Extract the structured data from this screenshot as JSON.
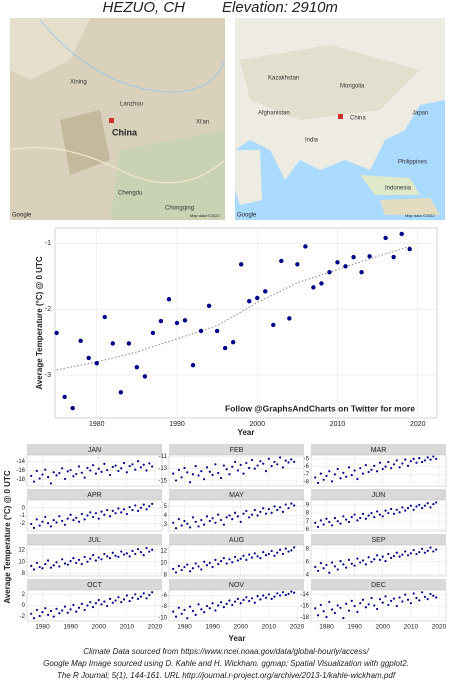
{
  "header": {
    "location": "HEZUO, CH",
    "elevation": "Elevation: 2910m"
  },
  "maps": {
    "left": {
      "labels": [
        "Xining",
        "Lanzhou",
        "China",
        "Chengdu",
        "Chongqing",
        "Xi'an",
        "Google",
        "Map data ©2022"
      ]
    },
    "right": {
      "labels": [
        "Mongolia",
        "China",
        "India",
        "Afghanistan",
        "Kazakhstan",
        "Japan",
        "Indonesia",
        "Philippines",
        "Google",
        "Map data ©2022"
      ]
    }
  },
  "chart_data": [
    {
      "type": "scatter",
      "xlabel": "Year",
      "ylabel": "Average Temperature (°C) @ 0 UTC",
      "annotation": "Follow @GraphsAndCharts on Twitter for more",
      "color": "#00008b",
      "grid": true,
      "xlim": [
        1974.8,
        2022.4
      ],
      "ylim": [
        -3.65,
        -0.77
      ],
      "xticks": [
        1980,
        1990,
        2000,
        2010,
        2020
      ],
      "yticks": [
        -3,
        -2,
        -1
      ],
      "x": [
        1975,
        1976,
        1977,
        1978,
        1979,
        1980,
        1981,
        1982,
        1983,
        1984,
        1985,
        1986,
        1987,
        1988,
        1989,
        1990,
        1991,
        1992,
        1993,
        1994,
        1995,
        1996,
        1997,
        1998,
        1999,
        2000,
        2001,
        2002,
        2003,
        2004,
        2005,
        2006,
        2007,
        2008,
        2009,
        2010,
        2011,
        2012,
        2013,
        2014,
        2016,
        2017,
        2018,
        2019
      ],
      "values": [
        -2.36,
        -3.33,
        -3.5,
        -2.48,
        -2.74,
        -2.82,
        -2.12,
        -2.52,
        -3.26,
        -2.52,
        -2.88,
        -3.02,
        -2.36,
        -2.18,
        -1.85,
        -2.21,
        -2.17,
        -2.85,
        -2.33,
        -1.95,
        -2.33,
        -2.59,
        -2.5,
        -1.32,
        -1.88,
        -1.83,
        -1.73,
        -2.24,
        -1.27,
        -2.14,
        -1.32,
        -1.05,
        -1.67,
        -1.61,
        -1.44,
        -1.29,
        -1.35,
        -1.21,
        -1.44,
        -1.2,
        -0.92,
        -1.21,
        -0.86,
        -1.09
      ],
      "smooth": {
        "color": "#888888",
        "x": [
          1975,
          1980,
          1985,
          1990,
          1995,
          2000,
          2005,
          2010,
          2015,
          2019
        ],
        "values": [
          -2.92,
          -2.8,
          -2.65,
          -2.45,
          -2.25,
          -1.9,
          -1.6,
          -1.4,
          -1.2,
          -1.05
        ]
      }
    },
    {
      "type": "facet-scatter",
      "xlabel": "Year",
      "ylabel": "Average Temperature (°C) @ 0 UTC",
      "color": "#00008b",
      "grid": true,
      "xlim": [
        1974.5,
        2022.5
      ],
      "xticks": [
        1980,
        1990,
        2000,
        2010,
        2020
      ],
      "x": [
        1976,
        1977,
        1978,
        1979,
        1980,
        1981,
        1982,
        1983,
        1984,
        1985,
        1986,
        1987,
        1988,
        1989,
        1990,
        1991,
        1992,
        1993,
        1994,
        1995,
        1996,
        1997,
        1998,
        1999,
        2000,
        2001,
        2002,
        2003,
        2004,
        2005,
        2006,
        2007,
        2008,
        2009,
        2010,
        2011,
        2012,
        2013,
        2014,
        2015,
        2016,
        2017,
        2018,
        2019
      ],
      "panels": [
        {
          "name": "JAN",
          "ylim": [
            -19.5,
            -12.5
          ],
          "yticks": [
            -18,
            -16,
            -14
          ],
          "values": [
            -17.2,
            -18.5,
            -16.1,
            -17.8,
            -16.9,
            -15.8,
            -17.5,
            -18.9,
            -16.4,
            -17.1,
            -16.6,
            -15.5,
            -17.9,
            -16.2,
            -15.9,
            -17.3,
            -16.8,
            -15.1,
            -16.5,
            -17.6,
            -15.4,
            -16.0,
            -14.8,
            -16.7,
            -15.6,
            -16.3,
            -14.5,
            -15.9,
            -17.0,
            -15.2,
            -14.9,
            -16.1,
            -15.5,
            -14.3,
            -16.4,
            -15.0,
            -14.6,
            -15.8,
            -13.9,
            -15.3,
            -14.7,
            -16.0,
            -14.4,
            -15.1
          ]
        },
        {
          "name": "FEB",
          "ylim": [
            -15.8,
            -10.8
          ],
          "yticks": [
            -15,
            -13,
            -11
          ],
          "values": [
            -13.8,
            -14.9,
            -13.2,
            -14.4,
            -12.9,
            -13.6,
            -15.2,
            -13.9,
            -12.6,
            -14.1,
            -13.4,
            -14.7,
            -12.8,
            -13.5,
            -14.0,
            -12.3,
            -13.7,
            -14.5,
            -12.5,
            -13.1,
            -13.9,
            -12.7,
            -11.9,
            -13.3,
            -12.4,
            -13.8,
            -12.1,
            -12.9,
            -11.6,
            -13.0,
            -12.5,
            -11.8,
            -12.2,
            -13.4,
            -11.4,
            -12.6,
            -11.9,
            -12.3,
            -11.2,
            -12.8,
            -11.7,
            -12.0,
            -11.5,
            -11.9
          ]
        },
        {
          "name": "MAR",
          "ylim": [
            -8.5,
            -4.5
          ],
          "yticks": [
            -8,
            -7,
            -6,
            -5
          ],
          "values": [
            -7.4,
            -8.1,
            -6.9,
            -7.7,
            -7.2,
            -6.6,
            -7.9,
            -7.0,
            -6.3,
            -7.5,
            -6.8,
            -7.3,
            -6.1,
            -7.1,
            -6.5,
            -7.6,
            -6.2,
            -6.9,
            -5.8,
            -6.7,
            -6.4,
            -5.9,
            -6.6,
            -5.5,
            -6.3,
            -6.0,
            -5.4,
            -6.2,
            -5.7,
            -5.2,
            -6.1,
            -5.6,
            -5.1,
            -5.9,
            -5.3,
            -5.0,
            -5.5,
            -4.9,
            -5.4,
            -5.2,
            -4.8,
            -5.1,
            -4.7,
            -5.0
          ]
        },
        {
          "name": "APR",
          "ylim": [
            -3,
            1
          ],
          "yticks": [
            -2,
            -1,
            0
          ],
          "values": [
            -2.1,
            -2.6,
            -1.5,
            -2.3,
            -1.8,
            -1.2,
            -2.0,
            -2.4,
            -1.6,
            -1.9,
            -1.1,
            -1.7,
            -2.2,
            -1.4,
            -0.9,
            -1.6,
            -1.3,
            -1.8,
            -0.8,
            -1.5,
            -1.0,
            -0.6,
            -1.2,
            -0.7,
            -1.4,
            -0.5,
            -0.9,
            -0.3,
            -1.1,
            -0.4,
            -0.7,
            -0.1,
            -0.6,
            -0.2,
            -0.8,
            0.1,
            -0.3,
            0.3,
            -0.4,
            0.0,
            0.4,
            -0.2,
            0.2,
            0.5
          ]
        },
        {
          "name": "MAY",
          "ylim": [
            2.3,
            5.7
          ],
          "yticks": [
            3,
            4,
            5
          ],
          "values": [
            3.2,
            2.6,
            3.6,
            2.9,
            3.4,
            3.1,
            2.7,
            3.8,
            3.3,
            2.8,
            3.5,
            3.0,
            3.9,
            3.4,
            3.7,
            3.2,
            4.1,
            3.5,
            3.0,
            3.8,
            4.0,
            3.6,
            4.3,
            3.9,
            3.3,
            4.2,
            4.5,
            3.8,
            4.1,
            4.6,
            4.0,
            4.4,
            4.8,
            4.2,
            4.7,
            4.3,
            5.0,
            4.6,
            4.9,
            4.4,
            5.2,
            4.8,
            5.3,
            5.1
          ]
        },
        {
          "name": "JUN",
          "ylim": [
            5.8,
            9.6
          ],
          "yticks": [
            6,
            7,
            8,
            9
          ],
          "values": [
            6.8,
            6.3,
            7.1,
            6.6,
            7.3,
            6.9,
            6.5,
            7.4,
            7.0,
            6.7,
            7.6,
            7.2,
            6.9,
            7.5,
            7.8,
            7.1,
            7.4,
            7.9,
            7.3,
            7.7,
            8.0,
            7.5,
            8.2,
            7.8,
            7.6,
            8.3,
            8.0,
            8.5,
            7.9,
            8.4,
            8.1,
            8.7,
            8.3,
            8.6,
            8.9,
            8.4,
            8.8,
            9.0,
            8.6,
            8.9,
            9.2,
            8.7,
            9.1,
            9.3
          ]
        },
        {
          "name": "JUL",
          "ylim": [
            7.6,
            12.8
          ],
          "yticks": [
            8,
            10,
            12
          ],
          "values": [
            9.3,
            8.7,
            9.8,
            9.1,
            8.9,
            9.6,
            10.2,
            9.0,
            9.4,
            9.9,
            9.2,
            10.4,
            9.7,
            9.5,
            10.1,
            10.6,
            9.8,
            10.3,
            9.6,
            10.8,
            10.0,
            10.5,
            11.1,
            10.2,
            10.7,
            10.4,
            11.3,
            10.9,
            10.6,
            11.5,
            11.0,
            10.8,
            11.7,
            11.2,
            11.4,
            10.9,
            11.8,
            11.3,
            12.1,
            11.6,
            11.1,
            12.3,
            11.7,
            12.0
          ]
        },
        {
          "name": "AUG",
          "ylim": [
            7.8,
            13
          ],
          "yticks": [
            8,
            10,
            12
          ],
          "values": [
            9.0,
            8.4,
            9.5,
            8.8,
            9.3,
            9.7,
            8.6,
            9.1,
            9.9,
            9.4,
            8.9,
            10.2,
            9.6,
            10.0,
            9.3,
            10.5,
            9.8,
            10.3,
            10.8,
            9.9,
            10.6,
            10.1,
            11.0,
            10.4,
            10.7,
            11.2,
            10.5,
            11.4,
            10.9,
            11.6,
            11.1,
            10.8,
            11.8,
            11.3,
            11.5,
            12.0,
            11.2,
            11.7,
            12.2,
            11.5,
            12.4,
            11.9,
            12.1,
            12.6
          ]
        },
        {
          "name": "SEP",
          "ylim": [
            3.8,
            8.6
          ],
          "yticks": [
            4,
            6,
            8
          ],
          "values": [
            5.2,
            4.6,
            5.8,
            5.0,
            5.5,
            4.3,
            5.9,
            5.3,
            4.8,
            6.1,
            5.6,
            5.1,
            6.3,
            5.7,
            5.4,
            6.5,
            5.9,
            6.2,
            5.6,
            6.7,
            6.0,
            6.4,
            7.0,
            6.3,
            6.8,
            6.1,
            7.2,
            6.6,
            6.9,
            7.4,
            6.8,
            7.1,
            7.6,
            7.0,
            7.3,
            7.8,
            7.2,
            7.5,
            8.0,
            7.4,
            7.7,
            8.2,
            7.6,
            7.9
          ]
        },
        {
          "name": "OCT",
          "ylim": [
            -2.8,
            2.8
          ],
          "yticks": [
            -2,
            0,
            2
          ],
          "values": [
            -1.5,
            -2.3,
            -0.8,
            -1.9,
            -1.2,
            -0.5,
            -1.7,
            -1.0,
            -2.0,
            -0.6,
            -1.4,
            -0.9,
            -0.2,
            -1.3,
            -0.7,
            0.1,
            -1.1,
            -0.4,
            0.3,
            -0.8,
            0.0,
            0.6,
            -0.3,
            0.4,
            1.0,
            0.2,
            0.7,
            -0.1,
            1.2,
            0.5,
            0.9,
            1.5,
            0.6,
            1.1,
            1.8,
            0.8,
            1.4,
            2.0,
            1.2,
            1.6,
            2.2,
            1.3,
            1.9,
            2.4
          ]
        },
        {
          "name": "NOV",
          "ylim": [
            -10.6,
            -5
          ],
          "yticks": [
            -10,
            -8,
            -6
          ],
          "values": [
            -8.9,
            -9.8,
            -8.2,
            -9.3,
            -8.6,
            -10.1,
            -8.0,
            -8.8,
            -9.5,
            -7.6,
            -8.5,
            -9.0,
            -7.9,
            -8.3,
            -7.4,
            -8.7,
            -7.8,
            -7.2,
            -8.1,
            -7.5,
            -6.9,
            -7.7,
            -7.1,
            -6.6,
            -7.4,
            -6.8,
            -6.3,
            -7.0,
            -6.5,
            -7.3,
            -6.1,
            -6.7,
            -6.0,
            -6.4,
            -5.8,
            -6.6,
            -6.2,
            -5.6,
            -6.0,
            -5.4,
            -5.9,
            -5.7,
            -5.3,
            -5.5
          ]
        },
        {
          "name": "DEC",
          "ylim": [
            -18.6,
            -13.2
          ],
          "yticks": [
            -18,
            -16,
            -14
          ],
          "values": [
            -16.4,
            -17.6,
            -15.8,
            -16.9,
            -17.9,
            -15.3,
            -16.6,
            -17.2,
            -15.9,
            -16.3,
            -18.1,
            -15.6,
            -16.8,
            -15.1,
            -16.0,
            -17.0,
            -15.5,
            -14.9,
            -16.2,
            -15.7,
            -14.6,
            -15.9,
            -16.5,
            -14.8,
            -15.4,
            -14.3,
            -15.8,
            -15.1,
            -14.7,
            -16.0,
            -14.5,
            -15.2,
            -14.0,
            -14.9,
            -15.5,
            -13.8,
            -14.6,
            -15.0,
            -13.6,
            -14.4,
            -14.8,
            -13.9,
            -14.2,
            -14.5
          ]
        }
      ]
    }
  ],
  "footer": {
    "lines": [
      "Climate Data sourced from https://www.ncei.noaa.gov/data/global-hourly/access/",
      "Google Map Image sourced using D. Kahle and H. Wickham. ggmap: Spatial Visualization with ggplot2.",
      "The R Journal; 5(1), 144-161. URL http://journal.r-project.org/archive/2013-1/kahle-wickham.pdf"
    ]
  }
}
